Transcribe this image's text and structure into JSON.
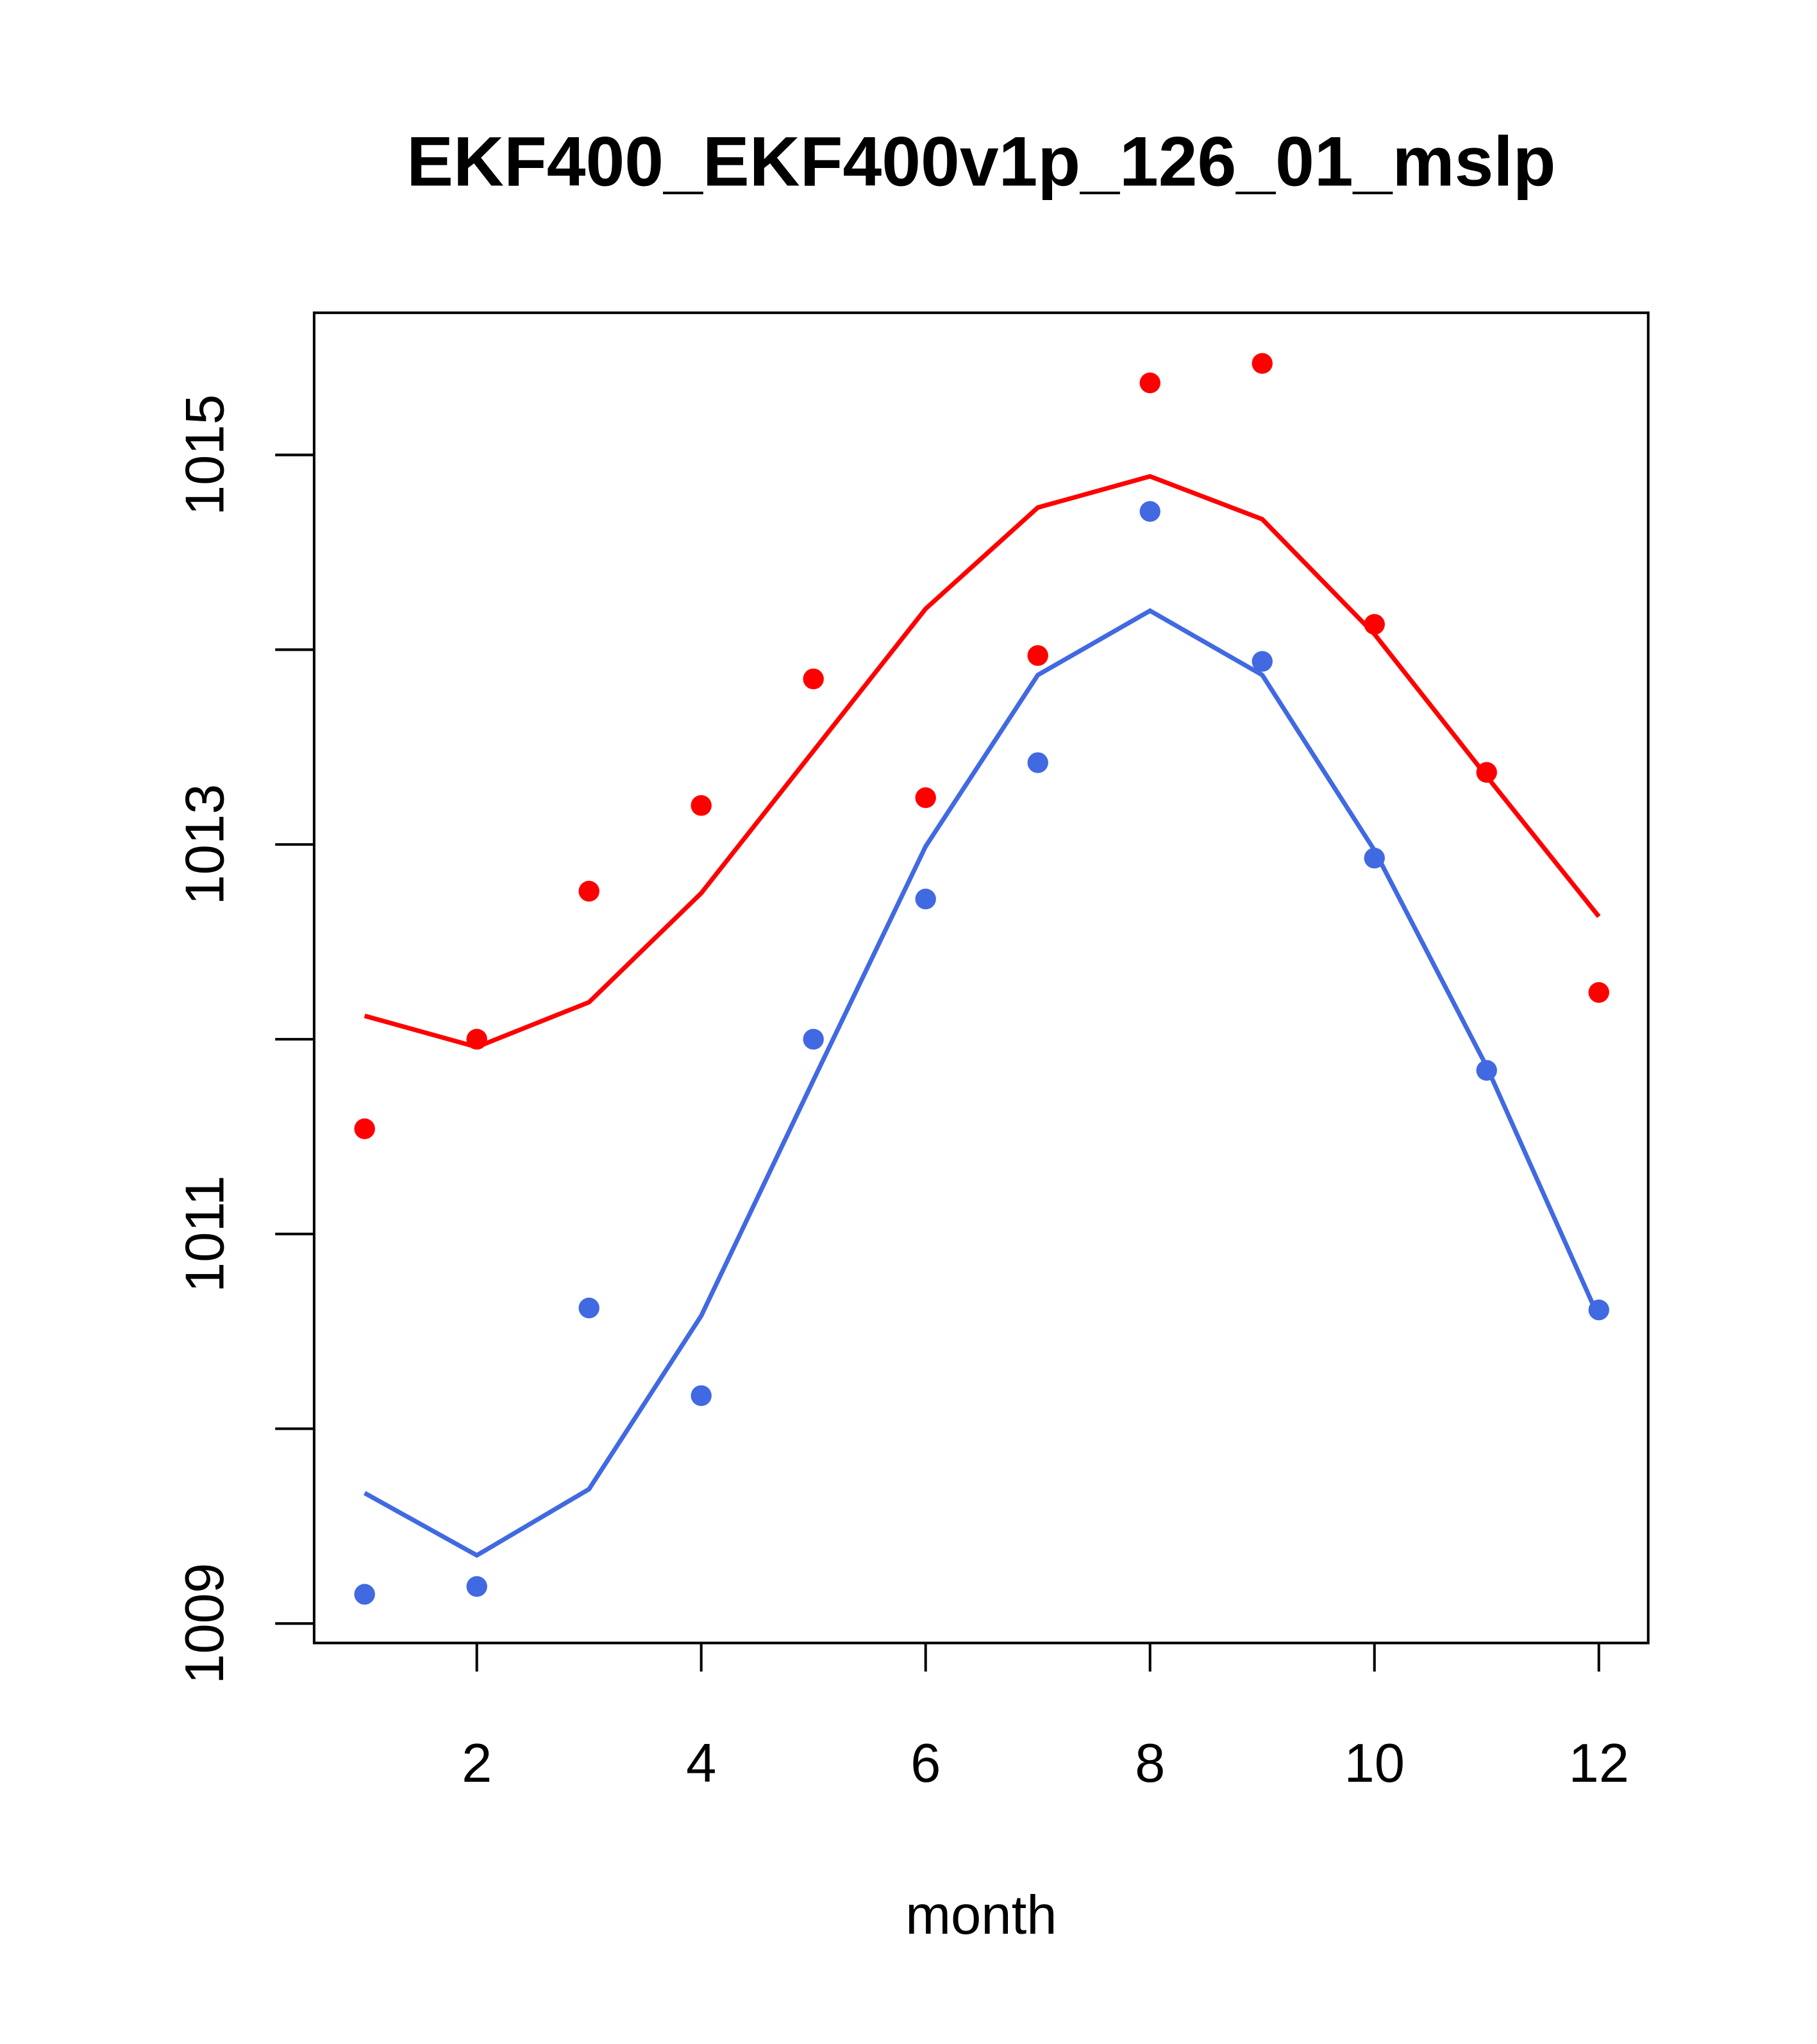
{
  "chart_data": {
    "type": "line",
    "title": "EKF400_EKF400v1p_126_01_mslp",
    "xlabel": "month",
    "ylabel": "",
    "xlim": [
      0.55,
      12.44
    ],
    "ylim": [
      1008.9,
      1015.73
    ],
    "x_ticks": [
      2,
      4,
      6,
      8,
      10,
      12
    ],
    "y_ticks": [
      1009,
      1010,
      1011,
      1012,
      1013,
      1014,
      1015
    ],
    "y_tick_labels": [
      "1009",
      "1011",
      "1013",
      "1015"
    ],
    "y_tick_label_values": [
      1009,
      1011,
      1013,
      1015
    ],
    "grid": false,
    "x": [
      1,
      2,
      3,
      4,
      5,
      6,
      7,
      8,
      9,
      10,
      11,
      12
    ],
    "series": [
      {
        "name": "red points",
        "kind": "points",
        "color": "#ff0000",
        "values": [
          1011.54,
          1012.0,
          1012.76,
          1013.2,
          1013.85,
          1013.24,
          1013.97,
          1015.37,
          1015.47,
          1014.13,
          1013.37,
          1012.24
        ]
      },
      {
        "name": "red line",
        "kind": "line",
        "color": "#ff0000",
        "values": [
          1012.12,
          1011.96,
          1012.19,
          1012.75,
          1013.48,
          1014.21,
          1014.73,
          1014.89,
          1014.67,
          1014.08,
          1013.35,
          1012.63
        ]
      },
      {
        "name": "blue points",
        "kind": "points",
        "color": "#4169e1",
        "values": [
          1009.15,
          1009.19,
          1010.62,
          1010.17,
          1012.0,
          1012.72,
          1013.42,
          1014.71,
          1013.94,
          1012.93,
          1011.84,
          1010.61
        ]
      },
      {
        "name": "blue line",
        "kind": "line",
        "color": "#4169e1",
        "values": [
          1009.67,
          1009.35,
          1009.69,
          1010.58,
          1011.79,
          1012.99,
          1013.87,
          1014.2,
          1013.87,
          1012.97,
          1011.86,
          1010.57
        ]
      }
    ]
  }
}
